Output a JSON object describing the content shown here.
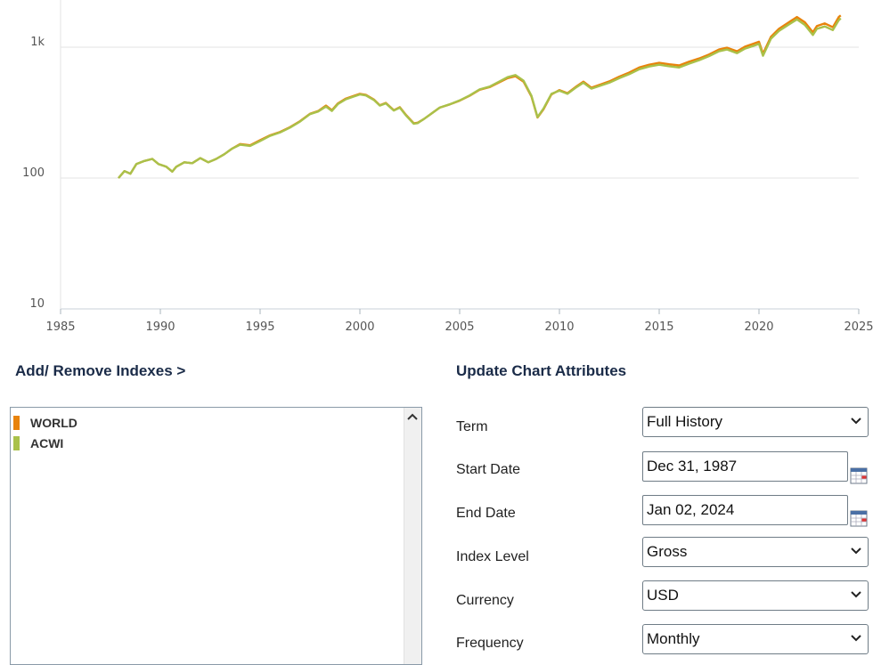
{
  "chart_data": {
    "type": "line",
    "title": "",
    "xlabel": "",
    "ylabel": "",
    "y_scale": "log",
    "ylim": [
      10,
      2000
    ],
    "xlim": [
      1985,
      2025
    ],
    "x_ticks": [
      1985,
      1990,
      1995,
      2000,
      2005,
      2010,
      2015,
      2020,
      2025
    ],
    "x_tick_labels": [
      "1985",
      "1990",
      "1995",
      "2000",
      "2005",
      "2010",
      "2015",
      "2020",
      "2025"
    ],
    "y_ticks": [
      10,
      100,
      1000
    ],
    "y_tick_labels": [
      "10",
      "100",
      "1k"
    ],
    "grid": true,
    "series": [
      {
        "name": "WORLD",
        "color": "#e8830c",
        "x": [
          1987.9,
          1988.2,
          1988.5,
          1988.8,
          1989.2,
          1989.6,
          1989.9,
          1990.3,
          1990.6,
          1990.8,
          1991.2,
          1991.6,
          1992.0,
          1992.4,
          1992.8,
          1993.2,
          1993.6,
          1994.0,
          1994.5,
          1995.0,
          1995.5,
          1996.0,
          1996.5,
          1997.0,
          1997.5,
          1997.9,
          1998.3,
          1998.6,
          1998.9,
          1999.3,
          1999.7,
          2000.0,
          2000.3,
          2000.7,
          2001.0,
          2001.3,
          2001.7,
          2002.0,
          2002.3,
          2002.7,
          2002.9,
          2003.2,
          2003.6,
          2004.0,
          2004.5,
          2005.0,
          2005.5,
          2006.0,
          2006.5,
          2007.0,
          2007.4,
          2007.8,
          2008.2,
          2008.6,
          2008.9,
          2009.2,
          2009.6,
          2010.0,
          2010.4,
          2010.8,
          2011.2,
          2011.6,
          2012.0,
          2012.5,
          2013.0,
          2013.5,
          2014.0,
          2014.5,
          2015.0,
          2015.5,
          2016.0,
          2016.5,
          2017.0,
          2017.5,
          2018.0,
          2018.4,
          2018.9,
          2019.3,
          2019.7,
          2020.0,
          2020.2,
          2020.6,
          2021.0,
          2021.5,
          2021.9,
          2022.3,
          2022.7,
          2022.9,
          2023.3,
          2023.7,
          2024.0,
          2024.1
        ],
        "values": [
          100,
          113,
          108,
          128,
          135,
          140,
          128,
          122,
          112,
          122,
          132,
          130,
          142,
          132,
          140,
          152,
          168,
          182,
          178,
          195,
          212,
          225,
          245,
          272,
          310,
          325,
          358,
          330,
          372,
          405,
          425,
          440,
          432,
          398,
          360,
          375,
          330,
          348,
          305,
          262,
          265,
          282,
          312,
          345,
          365,
          390,
          425,
          472,
          495,
          540,
          580,
          600,
          545,
          420,
          290,
          335,
          435,
          470,
          445,
          495,
          545,
          490,
          515,
          548,
          595,
          640,
          700,
          735,
          760,
          740,
          725,
          775,
          820,
          880,
          960,
          990,
          930,
          1010,
          1060,
          1100,
          890,
          1200,
          1380,
          1550,
          1700,
          1550,
          1300,
          1450,
          1520,
          1420,
          1700,
          1750
        ]
      },
      {
        "name": "ACWI",
        "color": "#a9c14a",
        "x": [
          1987.9,
          1988.2,
          1988.5,
          1988.8,
          1989.2,
          1989.6,
          1989.9,
          1990.3,
          1990.6,
          1990.8,
          1991.2,
          1991.6,
          1992.0,
          1992.4,
          1992.8,
          1993.2,
          1993.6,
          1994.0,
          1994.5,
          1995.0,
          1995.5,
          1996.0,
          1996.5,
          1997.0,
          1997.5,
          1997.9,
          1998.3,
          1998.6,
          1998.9,
          1999.3,
          1999.7,
          2000.0,
          2000.3,
          2000.7,
          2001.0,
          2001.3,
          2001.7,
          2002.0,
          2002.3,
          2002.7,
          2002.9,
          2003.2,
          2003.6,
          2004.0,
          2004.5,
          2005.0,
          2005.5,
          2006.0,
          2006.5,
          2007.0,
          2007.4,
          2007.8,
          2008.2,
          2008.6,
          2008.9,
          2009.2,
          2009.6,
          2010.0,
          2010.4,
          2010.8,
          2011.2,
          2011.6,
          2012.0,
          2012.5,
          2013.0,
          2013.5,
          2014.0,
          2014.5,
          2015.0,
          2015.5,
          2016.0,
          2016.5,
          2017.0,
          2017.5,
          2018.0,
          2018.4,
          2018.9,
          2019.3,
          2019.7,
          2020.0,
          2020.2,
          2020.6,
          2021.0,
          2021.5,
          2021.9,
          2022.3,
          2022.7,
          2022.9,
          2023.3,
          2023.7,
          2024.0,
          2024.1
        ],
        "values": [
          100,
          113,
          108,
          128,
          135,
          140,
          128,
          122,
          112,
          122,
          132,
          130,
          142,
          132,
          140,
          152,
          168,
          180,
          176,
          192,
          210,
          223,
          243,
          270,
          308,
          322,
          352,
          326,
          368,
          400,
          420,
          435,
          428,
          395,
          358,
          372,
          328,
          345,
          302,
          260,
          263,
          282,
          312,
          345,
          366,
          392,
          428,
          476,
          500,
          548,
          590,
          612,
          555,
          425,
          292,
          340,
          440,
          465,
          440,
          488,
          535,
          482,
          505,
          535,
          580,
          622,
          678,
          712,
          735,
          715,
          700,
          748,
          795,
          855,
          930,
          960,
          900,
          975,
          1020,
          1060,
          860,
          1160,
          1330,
          1490,
          1630,
          1480,
          1240,
          1380,
          1440,
          1350,
          1610,
          1660
        ]
      }
    ]
  },
  "indexes": {
    "title": "Add/ Remove Indexes >",
    "items": [
      {
        "label": "WORLD",
        "color": "#e8830c"
      },
      {
        "label": "ACWI",
        "color": "#a9c14a"
      }
    ]
  },
  "attributes": {
    "title": "Update Chart Attributes",
    "term": {
      "label": "Term",
      "value": "Full History"
    },
    "start_date": {
      "label": "Start Date",
      "value": "Dec 31, 1987"
    },
    "end_date": {
      "label": "End Date",
      "value": "Jan 02, 2024"
    },
    "index_level": {
      "label": "Index Level",
      "value": "Gross"
    },
    "currency": {
      "label": "Currency",
      "value": "USD"
    },
    "frequency": {
      "label": "Frequency",
      "value": "Monthly"
    }
  }
}
